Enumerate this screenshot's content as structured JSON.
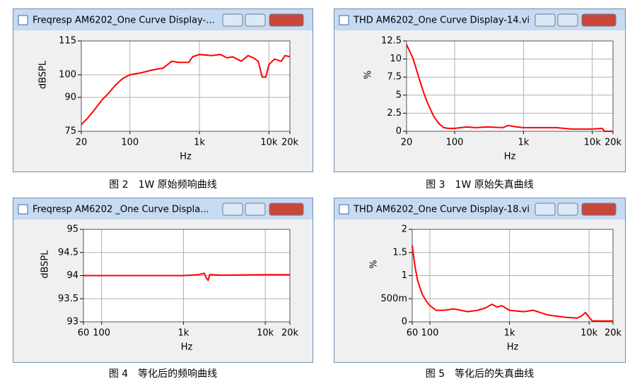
{
  "chart_data": [
    {
      "type": "line",
      "title": "Freqresp AM6202_One Curve Display-...",
      "caption": "图 2　1W 原始频响曲线",
      "xlabel": "Hz",
      "ylabel": "dBSPL",
      "log_x": true,
      "grid": true,
      "color": "#ff0000",
      "x": [
        20,
        25,
        30,
        40,
        50,
        60,
        70,
        80,
        100,
        150,
        200,
        300,
        400,
        500,
        700,
        800,
        1000,
        1500,
        2000,
        2500,
        3000,
        4000,
        5000,
        6000,
        7000,
        8000,
        9000,
        10000,
        12000,
        15000,
        17000,
        20000
      ],
      "values": [
        78,
        81,
        84,
        89,
        92,
        95,
        97,
        98.5,
        100,
        101,
        102,
        103,
        106,
        105.5,
        105.5,
        108,
        109,
        108.5,
        109,
        107.5,
        108,
        106,
        108.5,
        107.5,
        106,
        99,
        99,
        104.5,
        107,
        106,
        108.5,
        108
      ],
      "xlim": [
        20,
        20000
      ],
      "xticks": [
        20,
        100,
        {
          "value": 1000,
          "label": "1k"
        },
        {
          "value": 10000,
          "label": "10k"
        },
        {
          "value": 20000,
          "label": "20k"
        }
      ],
      "ylim": [
        75,
        115
      ],
      "yticks": [
        75,
        90,
        100,
        115
      ]
    },
    {
      "type": "line",
      "title": "THD   AM6202_One Curve Display-14.vi",
      "caption": "图 3　1W 原始失真曲线",
      "xlabel": "Hz",
      "ylabel": "%",
      "log_x": true,
      "grid": true,
      "color": "#ff0000",
      "x": [
        20,
        25,
        30,
        35,
        40,
        50,
        60,
        70,
        80,
        100,
        150,
        200,
        300,
        500,
        600,
        800,
        1000,
        2000,
        3000,
        5000,
        8000,
        10000,
        14000,
        15000,
        20000
      ],
      "values": [
        12,
        10,
        7.5,
        5.5,
        4,
        2,
        1,
        0.5,
        0.4,
        0.4,
        0.6,
        0.5,
        0.6,
        0.5,
        0.8,
        0.6,
        0.5,
        0.5,
        0.5,
        0.3,
        0.3,
        0.3,
        0.4,
        0,
        0
      ],
      "xlim": [
        20,
        20000
      ],
      "xticks": [
        20,
        100,
        {
          "value": 1000,
          "label": "1k"
        },
        {
          "value": 10000,
          "label": "10k"
        },
        {
          "value": 20000,
          "label": "20k"
        }
      ],
      "ylim": [
        0,
        12.5
      ],
      "yticks": [
        0,
        2.5,
        5,
        7.5,
        10,
        12.5
      ]
    },
    {
      "type": "line",
      "title": "Freqresp AM6202 _One Curve Displa...",
      "caption": "图 4　等化后的频响曲线",
      "xlabel": "Hz",
      "ylabel": "dBSPL",
      "log_x": true,
      "grid": true,
      "color": "#ff0000",
      "x": [
        60,
        100,
        500,
        1000,
        1500,
        1800,
        1900,
        2000,
        2100,
        3000,
        10000,
        20000
      ],
      "values": [
        94,
        94,
        94,
        94,
        94.02,
        94.05,
        93.95,
        93.9,
        94.02,
        94.01,
        94.02,
        94.02
      ],
      "xlim": [
        60,
        20000
      ],
      "xticks": [
        60,
        100,
        {
          "value": 1000,
          "label": "1k"
        },
        {
          "value": 10000,
          "label": "10k"
        },
        {
          "value": 20000,
          "label": "20k"
        }
      ],
      "ylim": [
        93,
        95
      ],
      "yticks": [
        93,
        93.5,
        94,
        94.5,
        95
      ]
    },
    {
      "type": "line",
      "title": "THD AM6202_One Curve Display-18.vi",
      "caption": "图 5　等化后的失真曲线",
      "xlabel": "Hz",
      "ylabel": "%",
      "log_x": true,
      "grid": true,
      "color": "#ff0000",
      "x": [
        60,
        65,
        70,
        80,
        90,
        100,
        120,
        150,
        200,
        300,
        400,
        500,
        600,
        700,
        800,
        1000,
        1500,
        2000,
        3000,
        4000,
        5000,
        7000,
        8000,
        9000,
        10000,
        11000,
        20000
      ],
      "values": [
        1.65,
        1.2,
        0.9,
        0.6,
        0.45,
        0.35,
        0.25,
        0.25,
        0.28,
        0.22,
        0.25,
        0.3,
        0.38,
        0.32,
        0.35,
        0.25,
        0.22,
        0.25,
        0.15,
        0.12,
        0.1,
        0.08,
        0.12,
        0.2,
        0.1,
        0.02,
        0.02
      ],
      "xlim": [
        60,
        20000
      ],
      "xticks": [
        60,
        100,
        {
          "value": 1000,
          "label": "1k"
        },
        {
          "value": 10000,
          "label": "10k"
        },
        {
          "value": 20000,
          "label": "20k"
        }
      ],
      "ylim": [
        0,
        2
      ],
      "yticks": [
        0,
        {
          "value": 0.5,
          "label": "500m"
        },
        1,
        1.5,
        2
      ]
    }
  ]
}
